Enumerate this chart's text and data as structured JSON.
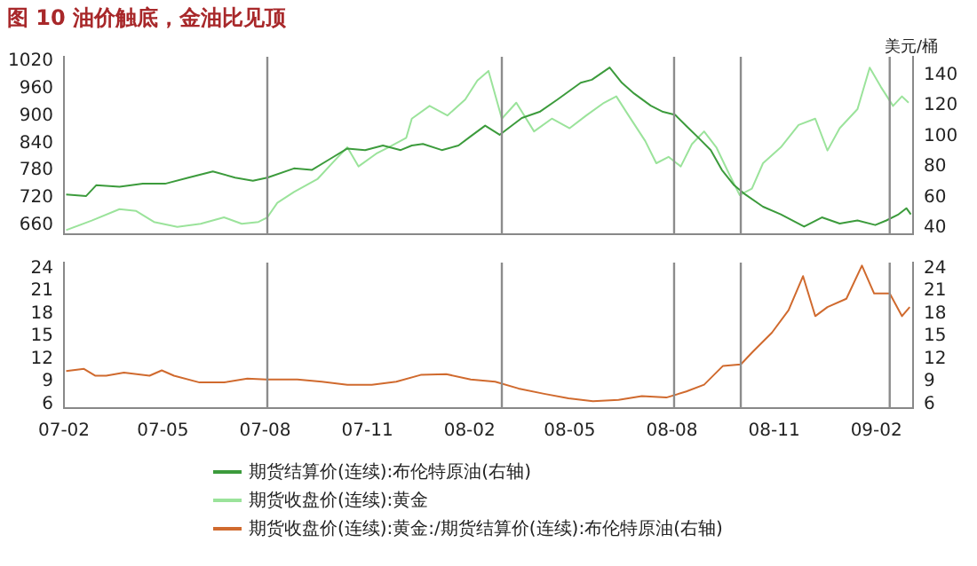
{
  "chart_data": [
    {
      "type": "line",
      "title": "图 10 油价触底，金油比见顶",
      "y2label": "美元/桶",
      "xlim": [
        "2007-02-01",
        "2009-03-06"
      ],
      "ylim": [
        640,
        1030
      ],
      "yticks": [
        660,
        720,
        780,
        840,
        900,
        960,
        1020
      ],
      "y2lim": [
        36,
        152
      ],
      "y2ticks": [
        40,
        60,
        80,
        100,
        120,
        140
      ],
      "tick_labels": "y",
      "grid": false,
      "legend": "bottom",
      "marker": "none",
      "line_style": "solid",
      "ref_lines": [
        {
          "axis": "x",
          "value": "2007-08-03",
          "color": "#8c8c8c"
        },
        {
          "axis": "x",
          "value": "2008-03-01",
          "color": "#8c8c8c"
        },
        {
          "axis": "x",
          "value": "2008-08-03",
          "color": "#8c8c8c"
        },
        {
          "axis": "x",
          "value": "2008-10-02",
          "color": "#8c8c8c"
        },
        {
          "axis": "x",
          "value": "2009-02-13",
          "color": "#8c8c8c"
        }
      ],
      "series": [
        {
          "name": "期货结算价(连续):布伦特原油(右轴)",
          "color": "#3c9b3c",
          "axis": "y2",
          "x": [
            "2007-02-03",
            "2007-02-21",
            "2007-03-02",
            "2007-03-23",
            "2007-04-13",
            "2007-05-03",
            "2007-05-24",
            "2007-06-15",
            "2007-07-05",
            "2007-07-21",
            "2007-08-03",
            "2007-08-27",
            "2007-09-12",
            "2007-09-28",
            "2007-10-14",
            "2007-10-30",
            "2007-11-15",
            "2007-12-01",
            "2007-12-11",
            "2007-12-21",
            "2008-01-07",
            "2008-01-22",
            "2008-02-02",
            "2008-02-15",
            "2008-02-28",
            "2008-03-19",
            "2008-04-04",
            "2008-04-20",
            "2008-05-11",
            "2008-05-21",
            "2008-06-06",
            "2008-06-17",
            "2008-06-28",
            "2008-07-13",
            "2008-07-24",
            "2008-08-04",
            "2008-08-15",
            "2008-08-25",
            "2008-09-05",
            "2008-09-15",
            "2008-09-26",
            "2008-10-06",
            "2008-10-22",
            "2008-11-07",
            "2008-11-28",
            "2008-12-14",
            "2008-12-30",
            "2009-01-15",
            "2009-01-31",
            "2009-02-10",
            "2009-02-21",
            "2009-02-28",
            "2009-03-04"
          ],
          "values": [
            62,
            61,
            68,
            67,
            69,
            69,
            73,
            77,
            73,
            71,
            73,
            79,
            78,
            85,
            92,
            91,
            94,
            91,
            94,
            95,
            91,
            94,
            100,
            107,
            101,
            112,
            116,
            124,
            135,
            137,
            145,
            135,
            128,
            120,
            116,
            114,
            106,
            99,
            91,
            78,
            68,
            62,
            54,
            49,
            41,
            47,
            43,
            45,
            42,
            45,
            49,
            53,
            49
          ]
        },
        {
          "name": "期货收盘价(连续):黄金",
          "color": "#9be39b",
          "x": [
            "2007-02-03",
            "2007-02-26",
            "2007-03-23",
            "2007-04-07",
            "2007-04-23",
            "2007-05-14",
            "2007-06-04",
            "2007-06-25",
            "2007-07-11",
            "2007-07-26",
            "2007-08-03",
            "2007-08-12",
            "2007-08-27",
            "2007-09-17",
            "2007-10-03",
            "2007-10-14",
            "2007-10-24",
            "2007-11-09",
            "2007-11-20",
            "2007-12-06",
            "2007-12-11",
            "2007-12-27",
            "2008-01-12",
            "2008-01-28",
            "2008-02-08",
            "2008-02-18",
            "2008-03-01",
            "2008-03-14",
            "2008-03-30",
            "2008-04-15",
            "2008-05-01",
            "2008-05-16",
            "2008-06-01",
            "2008-06-12",
            "2008-06-23",
            "2008-07-08",
            "2008-07-18",
            "2008-07-29",
            "2008-08-09",
            "2008-08-19",
            "2008-08-30",
            "2008-09-10",
            "2008-09-21",
            "2008-10-01",
            "2008-10-12",
            "2008-10-22",
            "2008-11-07",
            "2008-11-23",
            "2008-12-08",
            "2008-12-19",
            "2008-12-30",
            "2009-01-15",
            "2009-01-26",
            "2009-02-05",
            "2009-02-16",
            "2009-02-24",
            "2009-03-02"
          ],
          "values": [
            649,
            670,
            695,
            691,
            667,
            656,
            663,
            677,
            663,
            667,
            677,
            709,
            733,
            761,
            803,
            831,
            789,
            817,
            831,
            852,
            894,
            922,
            901,
            936,
            978,
            999,
            894,
            929,
            866,
            894,
            873,
            901,
            929,
            943,
            901,
            845,
            796,
            810,
            789,
            838,
            866,
            831,
            775,
            726,
            740,
            796,
            831,
            880,
            894,
            824,
            873,
            915,
            1006,
            964,
            922,
            943,
            929
          ]
        }
      ]
    },
    {
      "type": "line",
      "xlim": [
        "2007-02-01",
        "2009-03-06"
      ],
      "xticks": [
        {
          "value": "2007-02-01",
          "label": "07-02"
        },
        {
          "value": "2007-05-01",
          "label": "07-05"
        },
        {
          "value": "2007-08-01",
          "label": "07-08"
        },
        {
          "value": "2007-11-01",
          "label": "07-11"
        },
        {
          "value": "2008-02-01",
          "label": "08-02"
        },
        {
          "value": "2008-05-01",
          "label": "08-05"
        },
        {
          "value": "2008-08-01",
          "label": "08-08"
        },
        {
          "value": "2008-11-01",
          "label": "08-11"
        },
        {
          "value": "2009-02-01",
          "label": "09-02"
        }
      ],
      "ylim": [
        5.5,
        24.8
      ],
      "yticks": [
        6,
        9,
        12,
        15,
        18,
        21,
        24
      ],
      "y2lim": [
        5.5,
        24.8
      ],
      "y2ticks": [
        6,
        9,
        12,
        15,
        18,
        21,
        24
      ],
      "grid": false,
      "legend": "bottom",
      "marker": "none",
      "line_style": "solid",
      "ref_lines": [
        {
          "axis": "x",
          "value": "2007-08-03",
          "color": "#8c8c8c"
        },
        {
          "axis": "x",
          "value": "2008-03-01",
          "color": "#8c8c8c"
        },
        {
          "axis": "x",
          "value": "2008-08-03",
          "color": "#8c8c8c"
        },
        {
          "axis": "x",
          "value": "2008-10-02",
          "color": "#8c8c8c"
        },
        {
          "axis": "x",
          "value": "2009-02-13",
          "color": "#8c8c8c"
        }
      ],
      "series": [
        {
          "name": "期货收盘价(连续):黄金:/期货结算价(连续):布伦特原油(右轴)",
          "color": "#d06a2e",
          "x": [
            "2007-02-03",
            "2007-02-19",
            "2007-03-01",
            "2007-03-11",
            "2007-03-27",
            "2007-04-19",
            "2007-04-30",
            "2007-05-11",
            "2007-06-03",
            "2007-06-25",
            "2007-07-16",
            "2007-08-02",
            "2007-08-30",
            "2007-09-21",
            "2007-10-14",
            "2007-11-05",
            "2007-11-27",
            "2007-12-19",
            "2008-01-11",
            "2008-02-02",
            "2008-02-24",
            "2008-03-16",
            "2008-04-08",
            "2008-04-30",
            "2008-05-22",
            "2008-06-14",
            "2008-07-05",
            "2008-07-27",
            "2008-08-14",
            "2008-08-30",
            "2008-09-16",
            "2008-10-02",
            "2008-10-13",
            "2008-10-30",
            "2008-11-14",
            "2008-11-27",
            "2008-12-08",
            "2008-12-19",
            "2009-01-05",
            "2009-01-19",
            "2009-01-30",
            "2009-02-13",
            "2009-02-24",
            "2009-03-03"
          ],
          "values": [
            10.4,
            10.7,
            9.8,
            9.8,
            10.2,
            9.8,
            10.5,
            9.8,
            8.9,
            8.9,
            9.4,
            9.3,
            9.3,
            9.0,
            8.6,
            8.6,
            9.0,
            9.9,
            10.0,
            9.3,
            9.0,
            8.1,
            7.4,
            6.8,
            6.4,
            6.6,
            7.1,
            6.9,
            7.7,
            8.6,
            11.1,
            11.3,
            13.0,
            15.5,
            18.5,
            23.0,
            17.7,
            18.9,
            20.0,
            24.4,
            20.7,
            20.7,
            17.7,
            18.9
          ]
        }
      ]
    }
  ]
}
